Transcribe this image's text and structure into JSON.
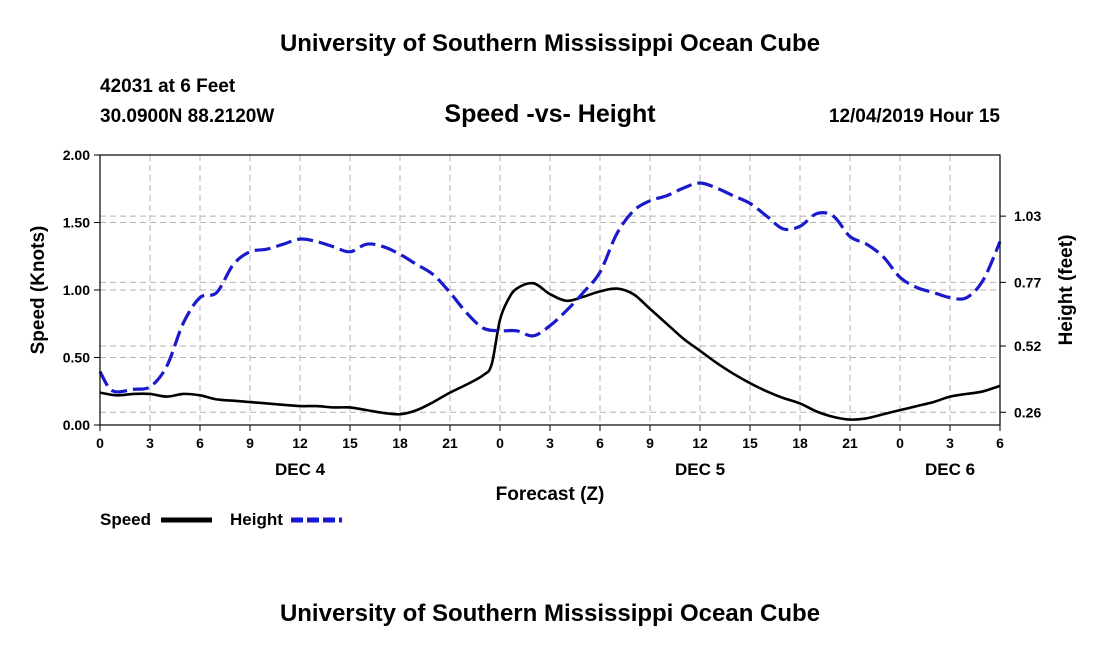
{
  "page": {
    "top_title": "University of Southern Mississippi Ocean Cube",
    "bottom_title": "University of Southern Mississippi Ocean Cube",
    "station": "42031 at 6 Feet",
    "coordinates": "30.0900N 88.2120W",
    "timestamp": "12/04/2019 Hour 15"
  },
  "colors": {
    "speed": "#000000",
    "height": "#1a1acc",
    "grid": "#b4b4b4"
  },
  "chart_data": {
    "type": "line",
    "title": "Speed -vs- Height",
    "xlabel": "Forecast (Z)",
    "ylabel": "Speed (Knots)",
    "y2label": "Height (feet)",
    "x_range_hours": [
      0,
      54
    ],
    "x_tick_labels": [
      "0",
      "3",
      "6",
      "9",
      "12",
      "15",
      "18",
      "21",
      "0",
      "3",
      "6",
      "9",
      "12",
      "15",
      "18",
      "21",
      "0",
      "3",
      "6"
    ],
    "day_labels": [
      {
        "label": "DEC 4",
        "hour": 12
      },
      {
        "label": "DEC 5",
        "hour": 36
      },
      {
        "label": "DEC 6",
        "hour": 51
      }
    ],
    "ylim": [
      0,
      2.0
    ],
    "y_ticks": [
      "0.00",
      "0.50",
      "1.00",
      "1.50",
      "2.00"
    ],
    "y2lim": [
      0.21,
      1.27
    ],
    "y2_ticks": [
      "0.26",
      "0.52",
      "0.77",
      "1.03"
    ],
    "legend_position": "bottom-left",
    "series": [
      {
        "name": "Speed",
        "axis": "left",
        "style": "solid",
        "x": [
          0,
          1,
          2,
          3,
          4,
          5,
          6,
          7,
          8,
          9,
          10,
          11,
          12,
          13,
          14,
          15,
          16,
          17,
          18,
          19,
          20,
          21,
          22,
          23,
          23.5,
          24,
          24.5,
          25,
          26,
          27,
          28,
          29,
          30,
          31,
          32,
          33,
          34,
          35,
          36,
          37,
          38,
          39,
          40,
          41,
          42,
          43,
          44,
          45,
          46,
          47,
          48,
          49,
          50,
          51,
          52,
          53,
          54
        ],
        "values": [
          0.24,
          0.22,
          0.23,
          0.23,
          0.21,
          0.23,
          0.22,
          0.19,
          0.18,
          0.17,
          0.16,
          0.15,
          0.14,
          0.14,
          0.13,
          0.13,
          0.11,
          0.09,
          0.08,
          0.11,
          0.17,
          0.24,
          0.3,
          0.37,
          0.45,
          0.78,
          0.93,
          1.01,
          1.05,
          0.97,
          0.92,
          0.95,
          0.99,
          1.01,
          0.97,
          0.86,
          0.75,
          0.64,
          0.55,
          0.46,
          0.38,
          0.31,
          0.25,
          0.2,
          0.16,
          0.1,
          0.06,
          0.04,
          0.05,
          0.08,
          0.11,
          0.14,
          0.17,
          0.21,
          0.23,
          0.25,
          0.29
        ]
      },
      {
        "name": "Height",
        "axis": "right",
        "style": "dashed",
        "x": [
          0,
          0.5,
          1,
          2,
          3,
          4,
          5,
          6,
          7,
          8,
          9,
          10,
          11,
          12,
          13,
          14,
          15,
          16,
          17,
          18,
          19,
          20,
          21,
          22,
          23,
          24,
          25,
          26,
          27,
          28,
          29,
          30,
          31,
          32,
          33,
          34,
          35,
          36,
          37,
          38,
          39,
          40,
          41,
          42,
          43,
          44,
          45,
          46,
          47,
          48,
          49,
          50,
          51,
          52,
          53,
          54
        ],
        "values": [
          0.42,
          0.36,
          0.34,
          0.35,
          0.36,
          0.44,
          0.61,
          0.71,
          0.73,
          0.84,
          0.89,
          0.9,
          0.92,
          0.94,
          0.93,
          0.91,
          0.89,
          0.92,
          0.91,
          0.88,
          0.84,
          0.8,
          0.73,
          0.65,
          0.59,
          0.58,
          0.58,
          0.56,
          0.6,
          0.66,
          0.73,
          0.81,
          0.96,
          1.05,
          1.09,
          1.11,
          1.14,
          1.16,
          1.14,
          1.11,
          1.08,
          1.03,
          0.98,
          0.99,
          1.04,
          1.03,
          0.95,
          0.92,
          0.87,
          0.79,
          0.75,
          0.73,
          0.71,
          0.71,
          0.78,
          0.93
        ]
      }
    ]
  }
}
